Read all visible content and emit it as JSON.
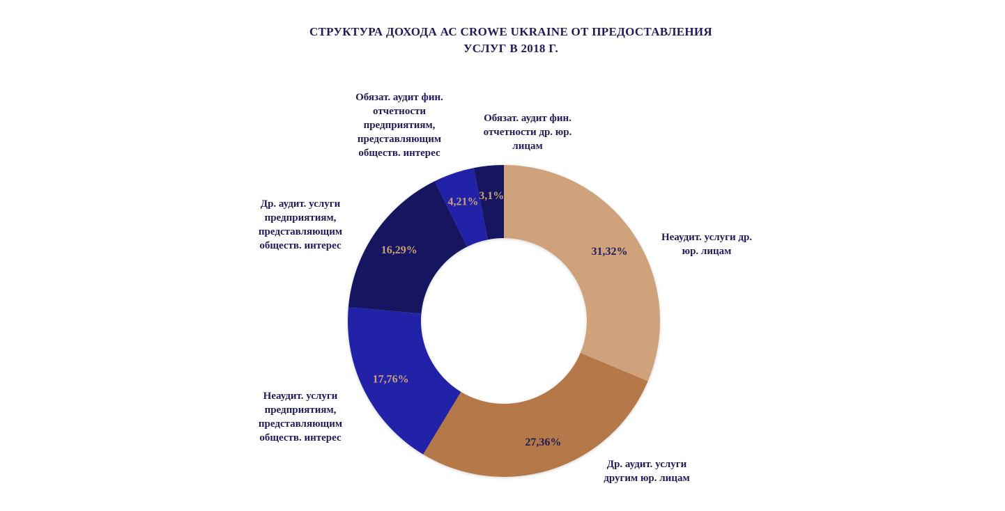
{
  "chart_data": {
    "type": "pie",
    "donut": true,
    "title_lines": [
      "СТРУКТУРА ДОХОДА АС CROWE UKRAINE ОТ ПРЕДОСТАВЛЕНИЯ",
      "УСЛУГ В 2018 Г."
    ],
    "slices": [
      {
        "label_lines": [
          "Неаудит. услуги др.",
          "юр. лицам"
        ],
        "value": 31.32,
        "value_label": "31,32%",
        "color": "#cfa27c",
        "text_color": "#1e1b5c"
      },
      {
        "label_lines": [
          "Др. аудит. услуги",
          "другим юр. лицам"
        ],
        "value": 27.36,
        "value_label": "27,36%",
        "color": "#b4784a",
        "text_color": "#1e1b5c"
      },
      {
        "label_lines": [
          "Неаудит. услуги",
          "предприятиям,",
          "представляющим",
          "обществ. интерес"
        ],
        "value": 17.76,
        "value_label": "17,76%",
        "color": "#2222a8",
        "text_color": "#c9a07c"
      },
      {
        "label_lines": [
          "Др. аудит. услуги",
          "предприятиям,",
          "представляющим",
          "обществ. интерес"
        ],
        "value": 16.29,
        "value_label": "16,29%",
        "color": "#171660",
        "text_color": "#c9a07c"
      },
      {
        "label_lines": [
          "Обязат. аудит фин.",
          "отчетности",
          "предприятиям,",
          "представляющим",
          "обществ. интерес"
        ],
        "value": 4.21,
        "value_label": "4,21%",
        "color": "#2222a8",
        "text_color": "#c9a07c"
      },
      {
        "label_lines": [
          "Обязат. аудит фин.",
          "отчетности др. юр.",
          "лицам"
        ],
        "value": 3.1,
        "value_label": "3,1%",
        "color": "#171660",
        "text_color": "#c9a07c"
      }
    ]
  }
}
